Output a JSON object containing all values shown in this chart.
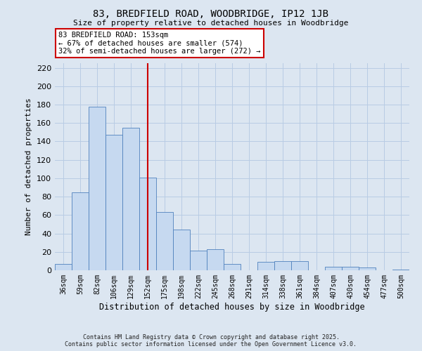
{
  "title1": "83, BREDFIELD ROAD, WOODBRIDGE, IP12 1JB",
  "title2": "Size of property relative to detached houses in Woodbridge",
  "xlabel": "Distribution of detached houses by size in Woodbridge",
  "ylabel": "Number of detached properties",
  "categories": [
    "36sqm",
    "59sqm",
    "82sqm",
    "106sqm",
    "129sqm",
    "152sqm",
    "175sqm",
    "198sqm",
    "222sqm",
    "245sqm",
    "268sqm",
    "291sqm",
    "314sqm",
    "338sqm",
    "361sqm",
    "384sqm",
    "407sqm",
    "430sqm",
    "454sqm",
    "477sqm",
    "500sqm"
  ],
  "values": [
    7,
    85,
    178,
    147,
    155,
    101,
    63,
    44,
    21,
    23,
    7,
    0,
    9,
    10,
    10,
    0,
    4,
    4,
    3,
    0,
    1
  ],
  "bar_color": "#c6d9f0",
  "bar_edge_color": "#4f81bd",
  "grid_color": "#b8cce4",
  "background_color": "#dce6f1",
  "property_line_x": 5.0,
  "annotation_text1": "83 BREDFIELD ROAD: 153sqm",
  "annotation_text2": "← 67% of detached houses are smaller (574)",
  "annotation_text3": "32% of semi-detached houses are larger (272) →",
  "annotation_box_color": "#ffffff",
  "annotation_border_color": "#cc0000",
  "vline_color": "#cc0000",
  "footer1": "Contains HM Land Registry data © Crown copyright and database right 2025.",
  "footer2": "Contains public sector information licensed under the Open Government Licence v3.0.",
  "ylim": [
    0,
    225
  ],
  "yticks": [
    0,
    20,
    40,
    60,
    80,
    100,
    120,
    140,
    160,
    180,
    200,
    220
  ]
}
